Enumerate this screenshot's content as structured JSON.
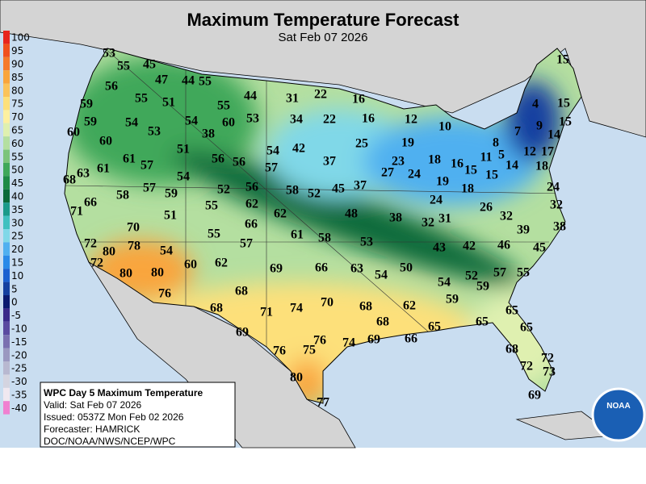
{
  "header": {
    "title": "Maximum Temperature Forecast",
    "subtitle": "Sat Feb 07 2026"
  },
  "legend": {
    "values": [
      100,
      95,
      90,
      85,
      80,
      75,
      70,
      65,
      60,
      55,
      50,
      45,
      40,
      35,
      30,
      25,
      20,
      15,
      10,
      5,
      0,
      -5,
      -10,
      -15,
      -20,
      -25,
      -30,
      -35,
      -40
    ],
    "colors": [
      "#e8251e",
      "#f0501e",
      "#f57a2a",
      "#f9a53c",
      "#fbc35a",
      "#fde07a",
      "#fdf0a0",
      "#dff0b0",
      "#b4dfa0",
      "#7cc47c",
      "#3fa85a",
      "#1e8a46",
      "#0a6a3a",
      "#1a9a8a",
      "#40c0c0",
      "#80d8e8",
      "#50b0f0",
      "#2a8ae8",
      "#1a60d0",
      "#1440a0",
      "#0a1a70",
      "#3a2a8a",
      "#5a4aa0",
      "#7a70b0",
      "#9a98c0",
      "#b8b8d0",
      "#d4d4e0",
      "#f0e8f0",
      "#f080d0"
    ]
  },
  "map": {
    "labels": [
      53,
      55,
      45,
      47,
      44,
      55,
      56,
      55,
      51,
      59,
      55,
      44,
      31,
      22,
      16,
      15,
      4,
      15,
      59,
      54,
      53,
      54,
      38,
      60,
      53,
      34,
      22,
      16,
      12,
      10,
      7,
      9,
      15,
      60,
      60,
      25,
      19,
      8,
      14,
      51,
      54,
      42,
      61,
      57,
      56,
      56,
      37,
      23,
      18,
      16,
      11,
      5,
      12,
      17,
      63,
      61,
      57,
      27,
      24,
      15,
      15,
      14,
      18,
      68,
      54,
      57,
      59,
      52,
      56,
      58,
      52,
      45,
      37,
      19,
      18,
      24,
      66,
      58,
      55,
      62,
      24,
      32,
      71,
      51,
      62,
      48,
      38,
      32,
      31,
      26,
      32,
      70,
      66,
      38,
      72,
      80,
      78,
      55,
      61,
      58,
      39,
      57,
      53,
      54,
      72,
      60,
      62,
      69,
      66,
      63,
      43,
      42,
      46,
      45,
      50,
      54,
      80,
      80,
      57,
      55,
      52,
      59,
      54,
      76,
      68,
      71,
      74,
      70,
      68,
      62,
      59,
      68,
      65,
      68,
      65,
      65,
      65,
      69,
      66,
      69,
      74,
      76,
      75,
      76,
      68,
      72,
      72,
      73,
      80,
      77,
      69
    ]
  },
  "info": {
    "lines": [
      "WPC Day 5 Maximum Temperature",
      "Valid: Sat Feb 07 2026",
      "Issued: 0537Z Mon Feb 02 2026",
      "Forecaster: HAMRICK",
      "DOC/NOAA/NWS/NCEP/WPC"
    ]
  },
  "logo": "NOAA"
}
